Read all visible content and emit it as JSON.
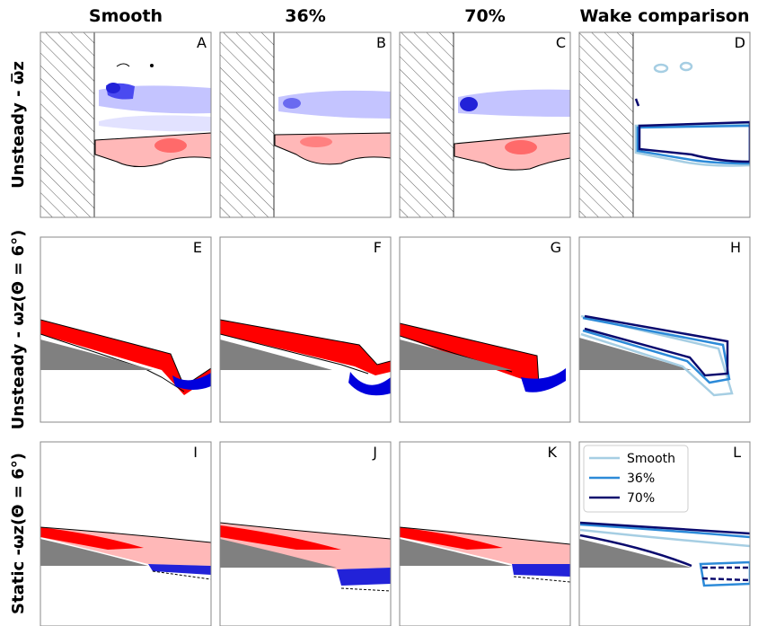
{
  "chart_data": {
    "type": "panel-grid",
    "columns": [
      "Smooth",
      "36%",
      "70%",
      "Wake comparison"
    ],
    "rows": [
      {
        "label": "Unsteady - ω̅z",
        "panels": [
          "A",
          "B",
          "C",
          "D"
        ]
      },
      {
        "label": "Unsteady - ωz(Θ = 6°)",
        "panels": [
          "E",
          "F",
          "G",
          "H"
        ]
      },
      {
        "label": "Static -ωz(Θ = 6°)",
        "panels": [
          "I",
          "J",
          "K",
          "L"
        ]
      }
    ],
    "legend": {
      "placement": "top-left",
      "entries": [
        {
          "name": "Smooth",
          "color": "#a6cee3"
        },
        {
          "name": "36%",
          "color": "#2c8ad8"
        },
        {
          "name": "70%",
          "color": "#0a0a6e"
        }
      ]
    },
    "colors": {
      "positive_vorticity": "#ff0000",
      "positive_light": "#ffb3b3",
      "negative_vorticity": "#0000dd",
      "negative_light": "#c4c4ff",
      "wall": "#808080"
    }
  }
}
